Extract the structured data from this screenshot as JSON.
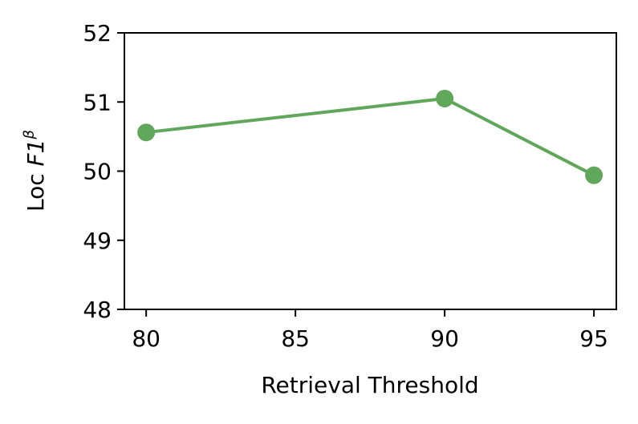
{
  "chart_data": {
    "type": "line",
    "xlabel": "Retrieval Threshold",
    "ylabel": {
      "prefix": "Loc",
      "symbol": "F1",
      "superscript": "β"
    },
    "x": [
      80,
      90,
      95
    ],
    "series": [
      {
        "color": "#60a75c",
        "values": [
          50.56,
          51.05,
          49.94
        ]
      }
    ],
    "xlim": [
      79.27,
      95.75
    ],
    "xticks": [
      80,
      85,
      90,
      95
    ],
    "ylim": [
      48,
      52
    ],
    "yticks": [
      48,
      49,
      50,
      51,
      52
    ]
  }
}
